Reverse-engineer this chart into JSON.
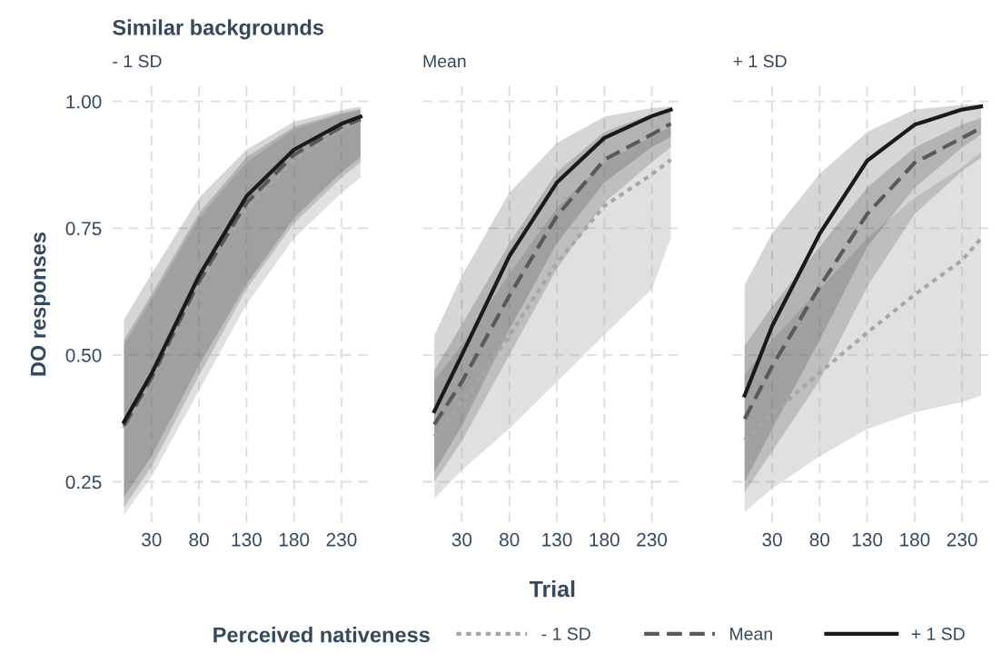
{
  "chart_data": [
    {
      "type": "line",
      "title": "Similar backgrounds",
      "subtitle": "- 1 SD",
      "ylabel": "DO responses",
      "legend": "bottom",
      "legend_title": "Perceived nativeness",
      "x": [
        1,
        30,
        80,
        130,
        180,
        230,
        250
      ],
      "xlim": [
        -11.5,
        262.5
      ],
      "xticks": [
        30,
        80,
        130,
        180,
        230
      ],
      "ylim": [
        0.17,
        1.03
      ],
      "yticks": [
        {
          "value": 0.25,
          "label": "0.25"
        },
        {
          "value": 0.5,
          "label": "0.50"
        },
        {
          "value": 0.75,
          "label": "0.75"
        },
        {
          "value": 1.0,
          "label": "1.00"
        }
      ],
      "grid": true,
      "marker": "none",
      "series": [
        {
          "name": "- 1 SD",
          "color": "#a6a6a6",
          "line_style": "dotted",
          "values": [
            0.355,
            0.45,
            0.635,
            0.79,
            0.885,
            0.945,
            0.962
          ],
          "lower": [
            0.185,
            0.26,
            0.43,
            0.6,
            0.73,
            0.82,
            0.85
          ],
          "upper": [
            0.52,
            0.61,
            0.77,
            0.88,
            0.945,
            0.975,
            0.982
          ]
        },
        {
          "name": "Mean",
          "color": "#595959",
          "line_style": "dashed",
          "values": [
            0.36,
            0.455,
            0.645,
            0.8,
            0.895,
            0.95,
            0.965
          ],
          "lower": [
            0.2,
            0.28,
            0.46,
            0.63,
            0.76,
            0.85,
            0.88
          ],
          "upper": [
            0.53,
            0.62,
            0.78,
            0.89,
            0.95,
            0.978,
            0.985
          ]
        },
        {
          "name": "+ 1 SD",
          "color": "#1a1a1a",
          "line_style": "solid",
          "values": [
            0.368,
            0.463,
            0.656,
            0.813,
            0.905,
            0.956,
            0.97
          ],
          "lower": [
            0.22,
            0.3,
            0.48,
            0.64,
            0.77,
            0.86,
            0.89
          ],
          "upper": [
            0.57,
            0.66,
            0.81,
            0.905,
            0.96,
            0.983,
            0.99
          ]
        }
      ]
    },
    {
      "type": "line",
      "subtitle": "Mean",
      "xlabel": "Trial",
      "x": [
        1,
        30,
        80,
        130,
        180,
        230,
        250
      ],
      "xlim": [
        -11.5,
        262.5
      ],
      "xticks": [
        30,
        80,
        130,
        180,
        230
      ],
      "ylim": [
        0.17,
        1.03
      ],
      "yticks": [
        0.25,
        0.5,
        0.75,
        1.0
      ],
      "tick_labels": "x",
      "grid": true,
      "marker": "none",
      "series": [
        {
          "color": "#a6a6a6",
          "line_style": "dotted",
          "values": [
            0.339,
            0.407,
            0.538,
            0.682,
            0.794,
            0.856,
            0.885
          ],
          "lower": [
            0.217,
            0.273,
            0.355,
            0.447,
            0.54,
            0.63,
            0.73
          ],
          "upper": [
            0.45,
            0.52,
            0.66,
            0.79,
            0.88,
            0.93,
            0.95
          ]
        },
        {
          "color": "#595959",
          "line_style": "dashed",
          "values": [
            0.363,
            0.447,
            0.617,
            0.774,
            0.885,
            0.935,
            0.956
          ],
          "lower": [
            0.25,
            0.33,
            0.5,
            0.67,
            0.8,
            0.88,
            0.91
          ],
          "upper": [
            0.47,
            0.56,
            0.72,
            0.86,
            0.94,
            0.975,
            0.985
          ]
        },
        {
          "color": "#1a1a1a",
          "line_style": "solid",
          "values": [
            0.389,
            0.5,
            0.695,
            0.84,
            0.928,
            0.971,
            0.984
          ],
          "lower": [
            0.27,
            0.36,
            0.55,
            0.72,
            0.84,
            0.91,
            0.93
          ],
          "upper": [
            0.538,
            0.656,
            0.82,
            0.918,
            0.97,
            0.987,
            0.99
          ]
        }
      ]
    },
    {
      "type": "line",
      "subtitle": "+ 1 SD",
      "x": [
        1,
        30,
        80,
        130,
        180,
        230,
        250
      ],
      "xlim": [
        -11.5,
        262.5
      ],
      "xticks": [
        30,
        80,
        130,
        180,
        230
      ],
      "ylim": [
        0.17,
        1.03
      ],
      "yticks": [
        0.25,
        0.5,
        0.75,
        1.0
      ],
      "tick_labels": "x",
      "grid": true,
      "marker": "none",
      "series": [
        {
          "color": "#a6a6a6",
          "line_style": "dotted",
          "values": [
            0.332,
            0.384,
            0.465,
            0.544,
            0.619,
            0.687,
            0.73
          ],
          "lower": [
            0.19,
            0.237,
            0.3,
            0.354,
            0.387,
            0.407,
            0.42
          ],
          "upper": [
            0.46,
            0.53,
            0.63,
            0.73,
            0.81,
            0.87,
            0.9
          ]
        },
        {
          "color": "#595959",
          "line_style": "dashed",
          "values": [
            0.374,
            0.478,
            0.635,
            0.778,
            0.879,
            0.928,
            0.948
          ],
          "lower": [
            0.23,
            0.31,
            0.45,
            0.635,
            0.778,
            0.863,
            0.889
          ],
          "upper": [
            0.518,
            0.596,
            0.713,
            0.83,
            0.909,
            0.954,
            0.967
          ]
        },
        {
          "color": "#1a1a1a",
          "line_style": "solid",
          "values": [
            0.42,
            0.557,
            0.739,
            0.883,
            0.954,
            0.984,
            0.99
          ],
          "lower": [
            0.25,
            0.354,
            0.53,
            0.713,
            0.83,
            0.909,
            0.935
          ],
          "upper": [
            0.638,
            0.74,
            0.857,
            0.94,
            0.984,
            0.993,
            0.995
          ]
        }
      ]
    }
  ]
}
